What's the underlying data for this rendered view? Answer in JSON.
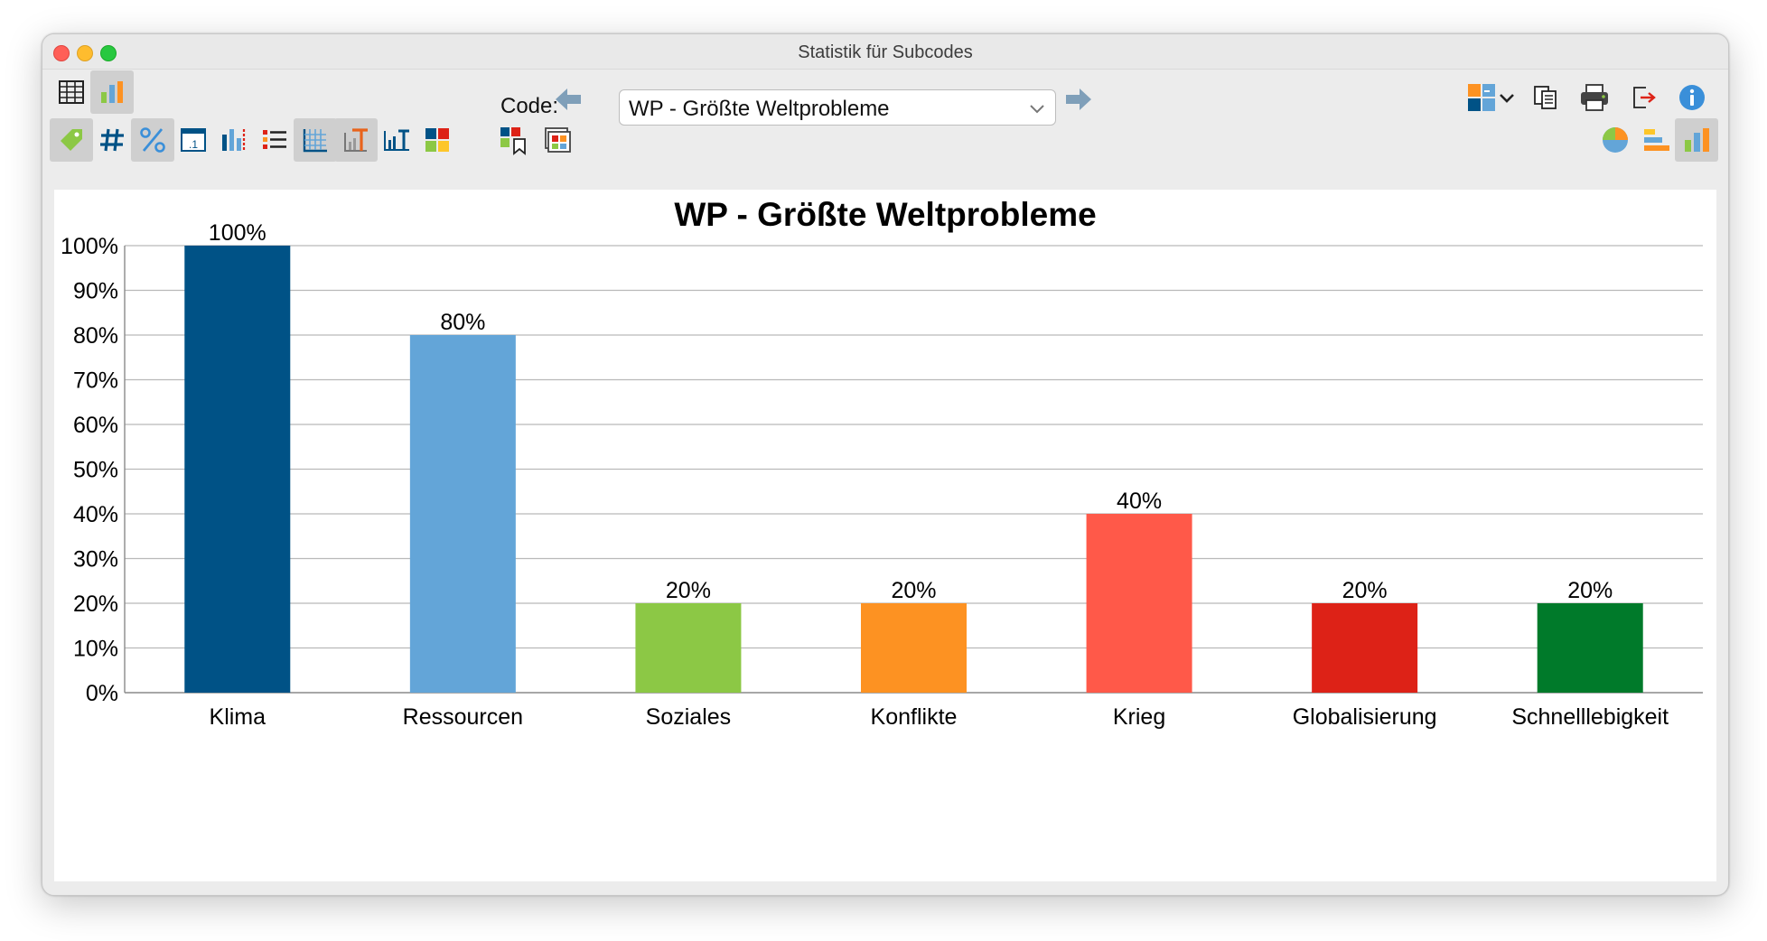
{
  "window": {
    "title": "Statistik für Subcodes"
  },
  "toolbar": {
    "code_label": "Code:",
    "code_value": "WP - Größte Weltprobleme",
    "icons": [
      "table-view-icon",
      "chart-view-icon",
      "back-arrow-icon",
      "forward-arrow-icon",
      "export-puzzle-icon",
      "dropdown-chevron-icon",
      "copy-icon",
      "print-icon",
      "export-icon",
      "info-icon"
    ]
  },
  "toolbar2": {
    "icons": [
      "tag-icon",
      "hash-icon",
      "percent-icon",
      "decimal-icon",
      "bar-label-icon",
      "list-icon",
      "grid-icon",
      "text-format-icon",
      "axis-title-icon",
      "color-palette-icon",
      "bookmark-chart-icon",
      "frame-icon",
      "pie-chart-icon",
      "horizontal-bar-icon",
      "vertical-bar-icon"
    ]
  },
  "colors": [
    "#005286",
    "#63a5d8",
    "#8cc845",
    "#fd9222",
    "#ff5949",
    "#dd2217",
    "#007a2a"
  ],
  "chart_data": {
    "type": "bar",
    "title": "WP - Größte Weltprobleme",
    "categories": [
      "Klima",
      "Ressourcen",
      "Soziales",
      "Konflikte",
      "Krieg",
      "Globalisierung",
      "Schnelllebigkeit"
    ],
    "values": [
      100,
      80,
      20,
      20,
      40,
      20,
      20
    ],
    "value_labels": [
      "100%",
      "80%",
      "20%",
      "20%",
      "40%",
      "20%",
      "20%"
    ],
    "yticks": [
      "0%",
      "10%",
      "20%",
      "30%",
      "40%",
      "50%",
      "60%",
      "70%",
      "80%",
      "90%",
      "100%"
    ],
    "ylim": [
      0,
      100
    ],
    "grid": true,
    "xlabel": "",
    "ylabel": ""
  }
}
